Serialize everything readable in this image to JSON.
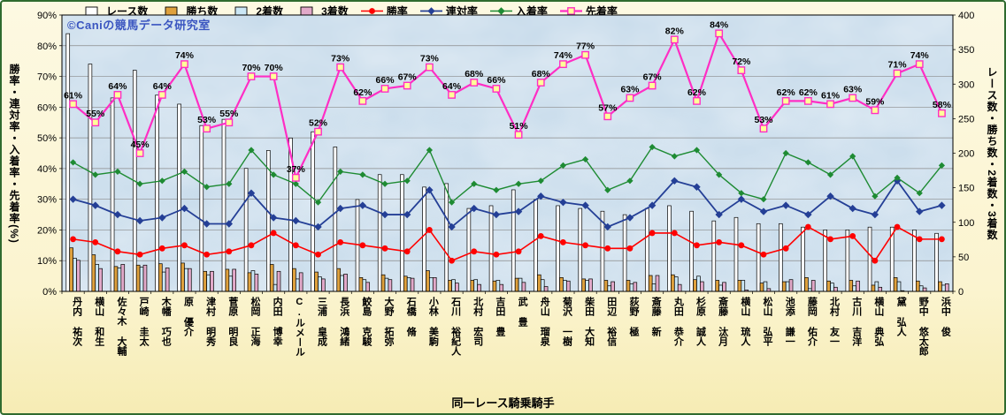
{
  "watermark": "©Caniの競馬データ研究室",
  "chart_data": {
    "type": "combo_bar_line",
    "title": "",
    "xlabel": "同一レース騎乗騎手",
    "ylabel_left": "勝率・連対率・入着率・先着率(%)",
    "ylabel_right": "レース数・勝ち数・2着数・3着数",
    "legend_position": "top",
    "grid": true,
    "left_axis": {
      "min": 0,
      "max": 90,
      "step": 10,
      "unit": "%",
      "ticks": [
        "90%",
        "80%",
        "70%",
        "60%",
        "50%",
        "40%",
        "30%",
        "20%",
        "10%",
        "0%"
      ]
    },
    "right_axis": {
      "min": 0,
      "max": 400,
      "step": 50,
      "ticks": [
        "400",
        "350",
        "300",
        "250",
        "200",
        "150",
        "100",
        "50",
        "0"
      ]
    },
    "categories": [
      "丹内 祐次",
      "横山 和生",
      "佐々木 大輔",
      "戸崎 圭太",
      "木幡 巧也",
      "原 優介",
      "津村 明秀",
      "菅原 明良",
      "松岡 正海",
      "内田 博幸",
      "C.ルメール",
      "三浦 皇成",
      "長浜 鴻緒",
      "鮫島 克駿",
      "大野 拓弥",
      "石橋 脩",
      "小林 美駒",
      "石川 裕紀人",
      "北村 宏司",
      "吉田 豊",
      "武 豊",
      "舟山 瑠泉",
      "菊沢 一樹",
      "柴田 大知",
      "田辺 裕信",
      "荻野 極",
      "斎藤 新",
      "丸田 恭介",
      "杉原 誠人",
      "斎藤 汰月",
      "横山 琉人",
      "松山 弘平",
      "池添 謙一",
      "藤岡 佑介",
      "北村 友一",
      "古川 吉洋",
      "横山 典弘",
      "黛 弘人",
      "野中 悠太郎",
      "浜中 俊"
    ],
    "bar_series": [
      {
        "key": "races",
        "name": "レース数",
        "color": "#FFFFFF",
        "axis": "right",
        "values": [
          373,
          329,
          280,
          320,
          284,
          271,
          240,
          249,
          178,
          204,
          222,
          231,
          209,
          133,
          169,
          169,
          151,
          156,
          120,
          124,
          147,
          133,
          124,
          120,
          116,
          111,
          120,
          124,
          116,
          102,
          107,
          98,
          98,
          93,
          89,
          89,
          93,
          93,
          89,
          84
        ]
      },
      {
        "key": "wins",
        "name": "勝ち数",
        "color": "#DFA13D",
        "axis": "right",
        "values": [
          63,
          53,
          36,
          38,
          40,
          41,
          29,
          32,
          27,
          39,
          33,
          28,
          33,
          20,
          24,
          22,
          30,
          16,
          16,
          15,
          19,
          24,
          20,
          18,
          16,
          16,
          23,
          24,
          17,
          16,
          16,
          12,
          14,
          20,
          15,
          16,
          9,
          20,
          15,
          14
        ]
      },
      {
        "key": "seconds",
        "name": "2着数",
        "color": "#CBE7F5",
        "axis": "right",
        "values": [
          48,
          39,
          34,
          35,
          28,
          33,
          24,
          22,
          30,
          10,
          18,
          21,
          23,
          17,
          19,
          20,
          20,
          17,
          17,
          16,
          19,
          17,
          16,
          16,
          8,
          11,
          11,
          21,
          22,
          9,
          16,
          14,
          14,
          4,
          12,
          8,
          14,
          14,
          8,
          9
        ]
      },
      {
        "key": "thirds",
        "name": "3着数",
        "color": "#E2A9C9",
        "axis": "right",
        "values": [
          45,
          33,
          39,
          38,
          34,
          33,
          29,
          32,
          25,
          29,
          27,
          18,
          25,
          13,
          17,
          19,
          20,
          12,
          10,
          10,
          13,
          7,
          15,
          18,
          14,
          13,
          23,
          10,
          14,
          13,
          2,
          4,
          17,
          16,
          6,
          15,
          6,
          1,
          5,
          11
        ]
      }
    ],
    "line_series": [
      {
        "key": "win_rate",
        "name": "勝率",
        "color": "#FF0000",
        "marker": "circle",
        "width": 1.6,
        "axis": "left",
        "values": [
          17,
          16,
          13,
          12,
          14,
          15,
          12,
          13,
          15,
          19,
          15,
          12,
          16,
          15,
          14,
          13,
          20,
          10,
          13,
          12,
          13,
          18,
          16,
          15,
          14,
          14,
          19,
          19,
          15,
          16,
          15,
          12,
          14,
          21,
          17,
          18,
          10,
          21,
          17,
          17
        ]
      },
      {
        "key": "quinella_rate",
        "name": "連対率",
        "color": "#243F96",
        "marker": "diamond",
        "width": 1.8,
        "axis": "left",
        "values": [
          30,
          28,
          25,
          23,
          24,
          27,
          22,
          22,
          32,
          24,
          23,
          21,
          27,
          28,
          25,
          25,
          33,
          21,
          27,
          25,
          26,
          31,
          29,
          28,
          21,
          24,
          28,
          36,
          34,
          25,
          30,
          26,
          28,
          25,
          31,
          27,
          25,
          36,
          26,
          28
        ]
      },
      {
        "key": "placing_rate",
        "name": "入着率",
        "color": "#1E8B33",
        "marker": "diamond",
        "width": 1.4,
        "axis": "left",
        "values": [
          42,
          38,
          39,
          35,
          36,
          39,
          34,
          35,
          46,
          38,
          35,
          29,
          39,
          38,
          35,
          36,
          46,
          29,
          35,
          33,
          35,
          36,
          41,
          43,
          33,
          36,
          47,
          44,
          46,
          38,
          32,
          30,
          45,
          42,
          38,
          44,
          31,
          37,
          32,
          41
        ]
      },
      {
        "key": "lead_rate",
        "name": "先着率",
        "color": "#FF2EC4",
        "marker": "square",
        "marker_fill": "#FFFF99",
        "width": 2.2,
        "axis": "left",
        "data_labels": true,
        "values": [
          61,
          55,
          64,
          45,
          64,
          74,
          53,
          55,
          70,
          70,
          37,
          52,
          73,
          62,
          66,
          67,
          73,
          64,
          68,
          66,
          51,
          68,
          74,
          77,
          57,
          63,
          67,
          82,
          62,
          84,
          72,
          53,
          62,
          62,
          61,
          63,
          59,
          71,
          74,
          58
        ]
      }
    ]
  }
}
